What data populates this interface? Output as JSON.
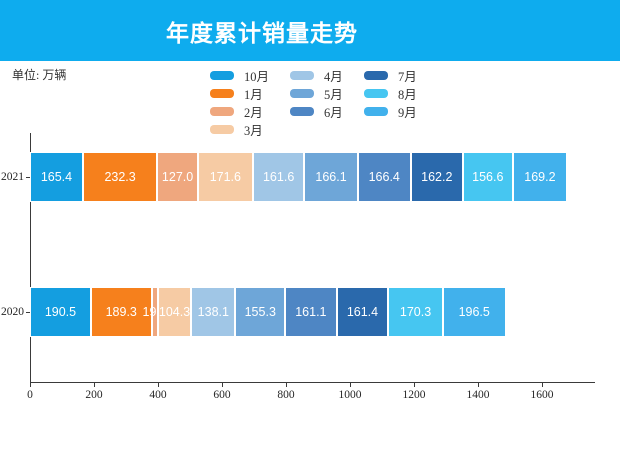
{
  "title": "年度累计销量走势",
  "unit_label": "单位: 万辆",
  "colors": {
    "header_background": "#0eacee",
    "axis": "#3a3a3a",
    "tick_text": "#262626",
    "legend_text": "#333333",
    "value_text": "#ffffff"
  },
  "chart_data": {
    "type": "bar",
    "orientation": "horizontal",
    "stacked": true,
    "title": "年度累计销量走势",
    "unit": "万辆",
    "categories": [
      "2021",
      "2020"
    ],
    "series": [
      {
        "name": "10月",
        "color": "#149ee0",
        "values": [
          165.4,
          190.5
        ]
      },
      {
        "name": "1月",
        "color": "#f6801c",
        "values": [
          232.3,
          189.3
        ]
      },
      {
        "name": "2月",
        "color": "#efa77e",
        "values": [
          127.0,
          19.8
        ]
      },
      {
        "name": "3月",
        "color": "#f6cba4",
        "values": [
          171.6,
          104.3
        ]
      },
      {
        "name": "4月",
        "color": "#a0c6e6",
        "values": [
          161.6,
          138.1
        ]
      },
      {
        "name": "5月",
        "color": "#6ea6d8",
        "values": [
          166.1,
          155.3
        ]
      },
      {
        "name": "6月",
        "color": "#4e86c4",
        "values": [
          166.4,
          161.1
        ]
      },
      {
        "name": "7月",
        "color": "#2a69ac",
        "values": [
          162.2,
          161.4
        ]
      },
      {
        "name": "8月",
        "color": "#46c6f1",
        "values": [
          156.6,
          170.3
        ]
      },
      {
        "name": "9月",
        "color": "#41b1ec",
        "values": [
          169.2,
          196.5
        ]
      }
    ],
    "xticks": [
      0,
      200,
      400,
      600,
      800,
      1000,
      1200,
      1400,
      1600
    ],
    "xlim": [
      0,
      1765
    ],
    "grid": false,
    "legend_position": "top",
    "legend_columns": [
      4,
      3,
      3
    ],
    "value_labels_decimals": 1
  }
}
